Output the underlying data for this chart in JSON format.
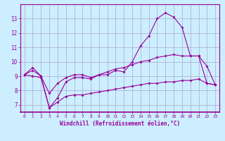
{
  "xlabel": "Windchill (Refroidissement éolien,°C)",
  "bg_color": "#cceeff",
  "line_color": "#990099",
  "grid_color": "#aaaacc",
  "hours": [
    0,
    1,
    2,
    3,
    4,
    5,
    6,
    7,
    8,
    9,
    10,
    11,
    12,
    13,
    14,
    15,
    16,
    17,
    18,
    19,
    20,
    21,
    22,
    23
  ],
  "line1": [
    9.1,
    9.6,
    9.0,
    6.8,
    7.5,
    8.6,
    8.9,
    8.9,
    8.8,
    9.1,
    9.1,
    9.4,
    9.3,
    10.0,
    11.1,
    11.8,
    13.0,
    13.4,
    13.1,
    12.4,
    10.4,
    10.4,
    9.7,
    8.4
  ],
  "line2": [
    9.1,
    9.4,
    9.0,
    7.8,
    8.5,
    8.9,
    9.1,
    9.1,
    8.9,
    9.1,
    9.3,
    9.5,
    9.6,
    9.8,
    10.0,
    10.1,
    10.3,
    10.4,
    10.5,
    10.4,
    10.4,
    10.4,
    8.5,
    8.4
  ],
  "line3": [
    9.1,
    9.0,
    8.9,
    6.8,
    7.2,
    7.6,
    7.7,
    7.7,
    7.8,
    7.9,
    8.0,
    8.1,
    8.2,
    8.3,
    8.4,
    8.5,
    8.5,
    8.6,
    8.6,
    8.7,
    8.7,
    8.8,
    8.5,
    8.4
  ],
  "ylim": [
    6.5,
    14.0
  ],
  "yticks": [
    7,
    8,
    9,
    10,
    11,
    12,
    13
  ],
  "xticks": [
    0,
    1,
    2,
    3,
    4,
    5,
    6,
    7,
    8,
    9,
    10,
    11,
    12,
    13,
    14,
    15,
    16,
    17,
    18,
    19,
    20,
    21,
    22,
    23
  ]
}
